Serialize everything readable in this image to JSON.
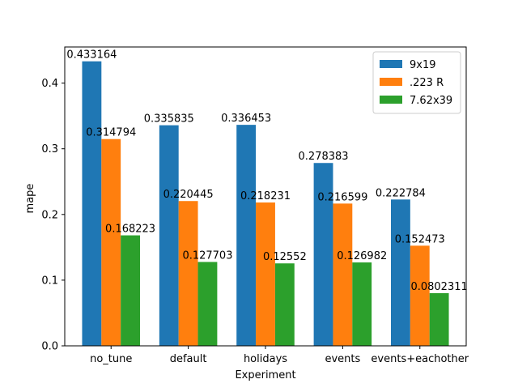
{
  "chart_data": {
    "type": "bar",
    "title": "",
    "xlabel": "Experiment",
    "ylabel": "mape",
    "categories": [
      "no_tune",
      "default",
      "holidays",
      "events",
      "events+eachother"
    ],
    "series": [
      {
        "name": "9x19",
        "color": "#1f77b4",
        "values": [
          0.433164,
          0.335835,
          0.336453,
          0.278383,
          0.222784
        ],
        "labels": [
          "0.433164",
          "0.335835",
          "0.336453",
          "0.278383",
          "0.222784"
        ]
      },
      {
        "name": ".223 R",
        "color": "#ff7f0e",
        "values": [
          0.314794,
          0.220445,
          0.218231,
          0.216599,
          0.152473
        ],
        "labels": [
          "0.314794",
          "0.220445",
          "0.218231",
          "0.216599",
          "0.152473"
        ]
      },
      {
        "name": "7.62x39",
        "color": "#2ca02c",
        "values": [
          0.168223,
          0.127703,
          0.12552,
          0.126982,
          0.0802311
        ],
        "labels": [
          "0.168223",
          "0.127703",
          "0.12552",
          "0.126982",
          "0.0802311"
        ]
      }
    ],
    "yticks": [
      0.0,
      0.1,
      0.2,
      0.3,
      0.4
    ],
    "ytick_labels": [
      "0.0",
      "0.1",
      "0.2",
      "0.3",
      "0.4"
    ],
    "ylim": [
      0,
      0.455
    ],
    "grid": false,
    "legend_position": "top-right"
  }
}
